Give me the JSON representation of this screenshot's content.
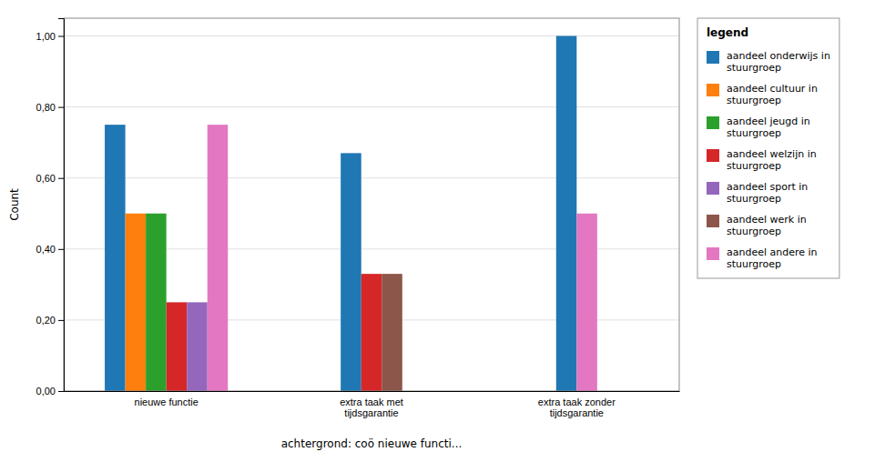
{
  "chart_data": {
    "type": "bar",
    "categories": [
      "nieuwe functie",
      "extra taak met\ntijdsgarantie",
      "extra taak zonder\ntijdsgarantie"
    ],
    "series": [
      {
        "name": "aandeel onderwijs in\nstuurgroep",
        "values": [
          0.75,
          0.67,
          1.0
        ]
      },
      {
        "name": "aandeel cultuur in\nstuurgroep",
        "values": [
          0.5,
          null,
          null
        ]
      },
      {
        "name": "aandeel jeugd in\nstuurgroep",
        "values": [
          0.5,
          null,
          null
        ]
      },
      {
        "name": "aandeel welzijn in\nstuurgroep",
        "values": [
          0.25,
          0.33,
          null
        ]
      },
      {
        "name": "aandeel sport in\nstuurgroep",
        "values": [
          0.25,
          null,
          null
        ]
      },
      {
        "name": "aandeel werk in\nstuurgroep",
        "values": [
          null,
          0.33,
          null
        ]
      },
      {
        "name": "aandeel andere in\nstuurgroep",
        "values": [
          0.75,
          null,
          0.5
        ]
      }
    ],
    "x_label": "achtergrond: coö nieuwe functi...",
    "y_label": "Count",
    "ylim": [
      0.0,
      1.05
    ],
    "yticks": [
      {
        "value": 0.0,
        "label": "0,00"
      },
      {
        "value": 0.2,
        "label": "0,20"
      },
      {
        "value": 0.4,
        "label": "0,40"
      },
      {
        "value": 0.6,
        "label": "0,60"
      },
      {
        "value": 0.8,
        "label": "0,80"
      },
      {
        "value": 1.0,
        "label": "1,00"
      }
    ],
    "grid": true,
    "legend": "right",
    "legend_title": "legend"
  }
}
